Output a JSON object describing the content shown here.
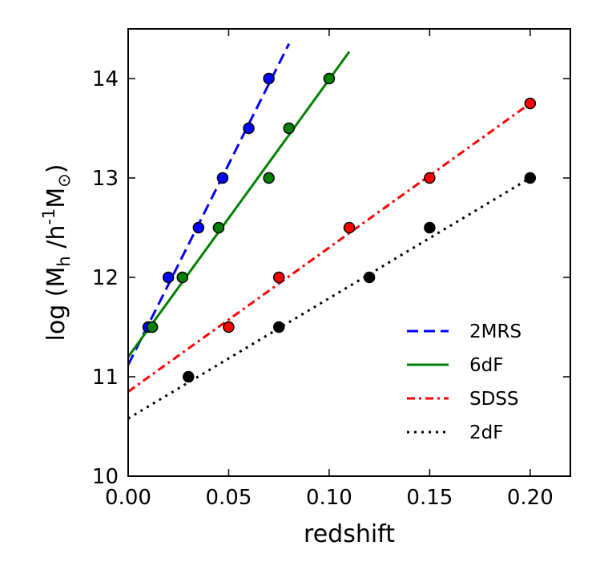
{
  "chart_data": {
    "type": "scatter",
    "title": "",
    "xlabel": "redshift",
    "ylabel": "log (M_h /h^-1 M_⊙)",
    "ylabel_parts": {
      "prefix": "log (M",
      "mass_subscript": "h",
      "middle": " /h",
      "exponent": "-1",
      "unit": "M",
      "unit_subscript": "⊙",
      "suffix": ")"
    },
    "xlim": [
      0.0,
      0.22
    ],
    "ylim": [
      10,
      14.5
    ],
    "x_ticks": [
      "0.00",
      "0.05",
      "0.10",
      "0.15",
      "0.20"
    ],
    "x_tick_values": [
      0.0,
      0.05,
      0.1,
      0.15,
      0.2
    ],
    "y_ticks": [
      "10",
      "11",
      "12",
      "13",
      "14"
    ],
    "y_tick_values": [
      10,
      11,
      12,
      13,
      14
    ],
    "grid": false,
    "legend_position": "lower-right",
    "series": [
      {
        "name": "2MRS",
        "color": "#0000ff",
        "line_style": "dashed",
        "points": [
          [
            0.01,
            11.5
          ],
          [
            0.02,
            12.0
          ],
          [
            0.035,
            12.5
          ],
          [
            0.047,
            13.0
          ],
          [
            0.06,
            13.5
          ],
          [
            0.07,
            14.0
          ]
        ],
        "fit": {
          "x0": 0.0,
          "y0": 11.12,
          "x1": 0.08,
          "y1": 14.35
        }
      },
      {
        "name": "6dF",
        "color": "#008000",
        "line_style": "solid",
        "points": [
          [
            0.012,
            11.5
          ],
          [
            0.027,
            12.0
          ],
          [
            0.045,
            12.5
          ],
          [
            0.07,
            13.0
          ],
          [
            0.08,
            13.5
          ],
          [
            0.1,
            14.0
          ]
        ],
        "fit": {
          "x0": 0.0,
          "y0": 11.2,
          "x1": 0.11,
          "y1": 14.27
        }
      },
      {
        "name": "SDSS",
        "color": "#ff0000",
        "line_style": "dashdot",
        "points": [
          [
            0.05,
            11.5
          ],
          [
            0.075,
            12.0
          ],
          [
            0.11,
            12.5
          ],
          [
            0.15,
            13.0
          ],
          [
            0.2,
            13.75
          ]
        ],
        "fit": {
          "x0": 0.0,
          "y0": 10.85,
          "x1": 0.2,
          "y1": 13.75
        }
      },
      {
        "name": "2dF",
        "color": "#000000",
        "line_style": "dotted",
        "points": [
          [
            0.03,
            11.0
          ],
          [
            0.075,
            11.5
          ],
          [
            0.12,
            12.0
          ],
          [
            0.15,
            12.5
          ],
          [
            0.2,
            13.0
          ]
        ],
        "fit": {
          "x0": 0.0,
          "y0": 10.58,
          "x1": 0.2,
          "y1": 13.0
        }
      }
    ]
  }
}
